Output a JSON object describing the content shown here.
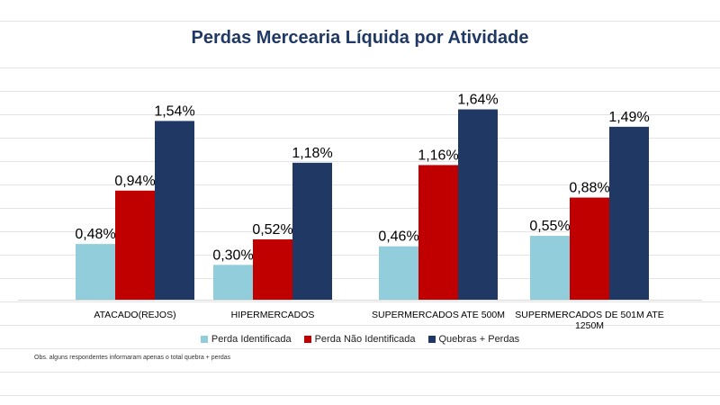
{
  "chart_data": {
    "type": "bar",
    "title": "Perdas Mercearia Líquida por Atividade",
    "categories": [
      "ATACADO(REJOS)",
      "HIPERMERCADOS",
      "SUPERMERCADOS ATE 500M",
      "SUPERMERCADOS DE 501M ATE 1250M"
    ],
    "series": [
      {
        "name": "Perda Identificada",
        "color": "#92cddc",
        "values": [
          0.48,
          0.3,
          0.46,
          0.55
        ],
        "labels": [
          "0,48%",
          "0,30%",
          "0,46%",
          "0,55%"
        ]
      },
      {
        "name": "Perda Não Identificada",
        "color": "#c00000",
        "values": [
          0.94,
          0.52,
          1.16,
          0.88
        ],
        "labels": [
          "0,94%",
          "0,52%",
          "1,16%",
          "0,88%"
        ]
      },
      {
        "name": "Quebras + Perdas",
        "color": "#1f3864",
        "values": [
          1.54,
          1.18,
          1.64,
          1.49
        ],
        "labels": [
          "1,54%",
          "1,18%",
          "1,64%",
          "1,49%"
        ]
      }
    ],
    "xlabel": "",
    "ylabel": "",
    "ylim": [
      0,
      1.9
    ],
    "grid": true,
    "legend": "bottom"
  },
  "note": "Obs. alguns respondentes informaram apenas  o total quebra + perdas"
}
